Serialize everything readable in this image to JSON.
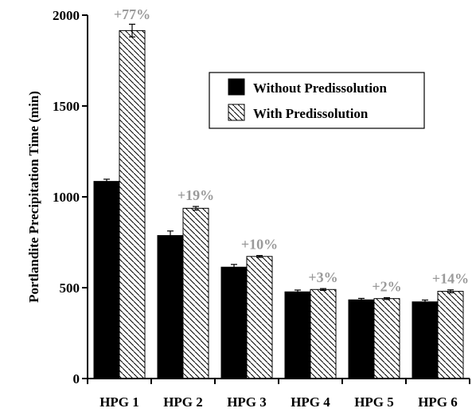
{
  "chart_data": {
    "type": "bar",
    "title": "",
    "xlabel": "",
    "ylabel": "Portlandite Precipitation Time (min)",
    "ylim": [
      0,
      2000
    ],
    "yticks": [
      0,
      500,
      1000,
      1500,
      2000
    ],
    "categories": [
      "HPG 1",
      "HPG 2",
      "HPG 3",
      "HPG 4",
      "HPG 5",
      "HPG 6"
    ],
    "series": [
      {
        "name": "Without Predissolution",
        "fill": "solid-black",
        "values": [
          1085,
          787,
          613,
          477,
          433,
          422
        ],
        "errors": [
          12,
          25,
          15,
          10,
          8,
          10
        ]
      },
      {
        "name": "With Predissolution",
        "fill": "diagonal-hatch",
        "values": [
          1915,
          937,
          672,
          490,
          440,
          480
        ],
        "errors": [
          35,
          10,
          5,
          5,
          5,
          8
        ]
      }
    ],
    "annotations": [
      "+77%",
      "+19%",
      "+10%",
      "+3%",
      "+2%",
      "+14%"
    ],
    "legend_position": "top-right",
    "grid": false,
    "colors": {
      "bar_primary": "#000000",
      "hatch": "#000000",
      "annotation": "#9a9a9a"
    }
  }
}
